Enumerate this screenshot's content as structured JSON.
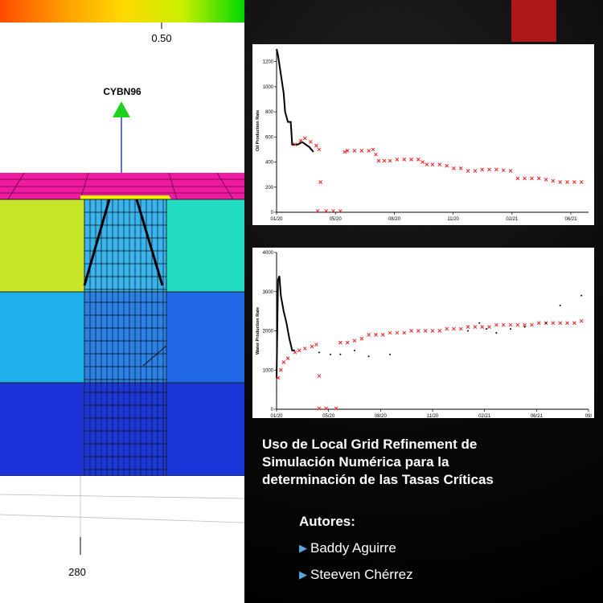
{
  "reservoir_view": {
    "colorbar_tick": "0.50",
    "well_label": "CYBN96",
    "axis_tick": "280"
  },
  "poster": {
    "title": "Uso de Local Grid Refinement de Simulación Numérica para la determinación de las Tasas Críticas",
    "authors_heading": "Autores:",
    "authors": [
      "Baddy Aguirre",
      "Steeven Chérrez"
    ]
  },
  "chart_data": [
    {
      "type": "scatter",
      "title": "",
      "ylabel": "Oil Production Rate",
      "xlabel": "",
      "ylim": [
        0,
        1300
      ],
      "yticks": [
        0,
        200,
        400,
        600,
        800,
        1000,
        1200
      ],
      "x_ticks": [
        "01/20",
        "05/20",
        "08/20",
        "11/20",
        "02/21",
        "06/21"
      ],
      "x_range_months": [
        0,
        22
      ],
      "series": [
        {
          "style": "black-line",
          "points": [
            [
              0,
              1300
            ],
            [
              0.1,
              1250
            ],
            [
              0.3,
              1100
            ],
            [
              0.5,
              950
            ],
            [
              0.6,
              800
            ],
            [
              0.8,
              720
            ],
            [
              1.0,
              720
            ],
            [
              1.1,
              540
            ],
            [
              1.5,
              540
            ],
            [
              1.8,
              560
            ],
            [
              2.3,
              520
            ],
            [
              2.6,
              480
            ]
          ]
        },
        {
          "style": "red-x",
          "points": [
            [
              1.3,
              540
            ],
            [
              1.7,
              570
            ],
            [
              2.0,
              590
            ],
            [
              2.4,
              560
            ],
            [
              2.8,
              530
            ],
            [
              3.0,
              500
            ],
            [
              3.1,
              240
            ],
            [
              2.9,
              10
            ],
            [
              3.5,
              10
            ],
            [
              4.0,
              10
            ],
            [
              4.5,
              10
            ],
            [
              4.8,
              480
            ],
            [
              5.0,
              490
            ],
            [
              5.5,
              490
            ],
            [
              6.0,
              490
            ],
            [
              6.5,
              490
            ],
            [
              6.8,
              500
            ],
            [
              7.0,
              460
            ],
            [
              7.2,
              410
            ],
            [
              7.6,
              410
            ],
            [
              8.0,
              410
            ],
            [
              8.5,
              420
            ],
            [
              9.0,
              420
            ],
            [
              9.5,
              420
            ],
            [
              10.0,
              420
            ],
            [
              10.3,
              400
            ],
            [
              10.6,
              380
            ],
            [
              11.0,
              380
            ],
            [
              11.5,
              380
            ],
            [
              12.0,
              370
            ],
            [
              12.5,
              350
            ],
            [
              13.0,
              350
            ],
            [
              13.5,
              330
            ],
            [
              14.0,
              330
            ],
            [
              14.5,
              340
            ],
            [
              15.0,
              340
            ],
            [
              15.5,
              340
            ],
            [
              16.0,
              335
            ],
            [
              16.5,
              330
            ],
            [
              17.0,
              270
            ],
            [
              17.5,
              270
            ],
            [
              18.0,
              270
            ],
            [
              18.5,
              270
            ],
            [
              19.0,
              260
            ],
            [
              19.5,
              250
            ],
            [
              20.0,
              240
            ],
            [
              20.5,
              240
            ],
            [
              21.0,
              240
            ],
            [
              21.5,
              240
            ]
          ]
        }
      ]
    },
    {
      "type": "scatter",
      "title": "",
      "ylabel": "Water Production Rate",
      "xlabel": "",
      "ylim": [
        0,
        4000
      ],
      "yticks": [
        0,
        1000,
        2000,
        3000,
        4000
      ],
      "x_ticks": [
        "01/20",
        "05/20",
        "08/20",
        "11/20",
        "02/21",
        "06/21",
        "09/"
      ],
      "x_range_months": [
        0,
        22
      ],
      "series": [
        {
          "style": "black-line",
          "points": [
            [
              0,
              800
            ],
            [
              0.1,
              3300
            ],
            [
              0.2,
              3400
            ],
            [
              0.3,
              2900
            ],
            [
              0.5,
              2500
            ],
            [
              0.7,
              2200
            ],
            [
              0.9,
              1800
            ],
            [
              1.1,
              1500
            ],
            [
              1.3,
              1500
            ]
          ]
        },
        {
          "style": "red-x",
          "points": [
            [
              0.1,
              800
            ],
            [
              0.3,
              1000
            ],
            [
              0.5,
              1200
            ],
            [
              0.8,
              1300
            ],
            [
              1.3,
              1450
            ],
            [
              1.6,
              1500
            ],
            [
              2.0,
              1550
            ],
            [
              2.5,
              1600
            ],
            [
              2.8,
              1650
            ],
            [
              3.0,
              850
            ],
            [
              3.0,
              20
            ],
            [
              3.5,
              20
            ],
            [
              4.2,
              20
            ],
            [
              4.5,
              1700
            ],
            [
              5.0,
              1700
            ],
            [
              5.5,
              1750
            ],
            [
              6.0,
              1800
            ],
            [
              6.5,
              1900
            ],
            [
              7.0,
              1900
            ],
            [
              7.5,
              1900
            ],
            [
              8.0,
              1950
            ],
            [
              8.5,
              1950
            ],
            [
              9.0,
              1950
            ],
            [
              9.5,
              2000
            ],
            [
              10.0,
              2000
            ],
            [
              10.5,
              2000
            ],
            [
              11.0,
              2000
            ],
            [
              11.5,
              2000
            ],
            [
              12.0,
              2050
            ],
            [
              12.5,
              2050
            ],
            [
              13.0,
              2050
            ],
            [
              13.5,
              2100
            ],
            [
              14.0,
              2100
            ],
            [
              14.5,
              2100
            ],
            [
              15.0,
              2100
            ],
            [
              15.5,
              2150
            ],
            [
              16.0,
              2150
            ],
            [
              16.5,
              2150
            ],
            [
              17.0,
              2150
            ],
            [
              17.5,
              2150
            ],
            [
              18.0,
              2150
            ],
            [
              18.5,
              2200
            ],
            [
              19.0,
              2200
            ],
            [
              19.5,
              2200
            ],
            [
              20.0,
              2200
            ],
            [
              20.5,
              2200
            ],
            [
              21.0,
              2200
            ],
            [
              21.5,
              2250
            ]
          ]
        },
        {
          "style": "black-dot",
          "points": [
            [
              3.0,
              1450
            ],
            [
              3.8,
              1400
            ],
            [
              4.5,
              1400
            ],
            [
              5.5,
              1500
            ],
            [
              6.5,
              1350
            ],
            [
              8.0,
              1400
            ],
            [
              13.5,
              2000
            ],
            [
              14.3,
              2200
            ],
            [
              14.8,
              2050
            ],
            [
              15.5,
              1950
            ],
            [
              16.5,
              2050
            ],
            [
              17.5,
              2100
            ],
            [
              19.0,
              2200
            ],
            [
              20.0,
              2650
            ],
            [
              21.5,
              2900
            ]
          ]
        }
      ]
    }
  ]
}
